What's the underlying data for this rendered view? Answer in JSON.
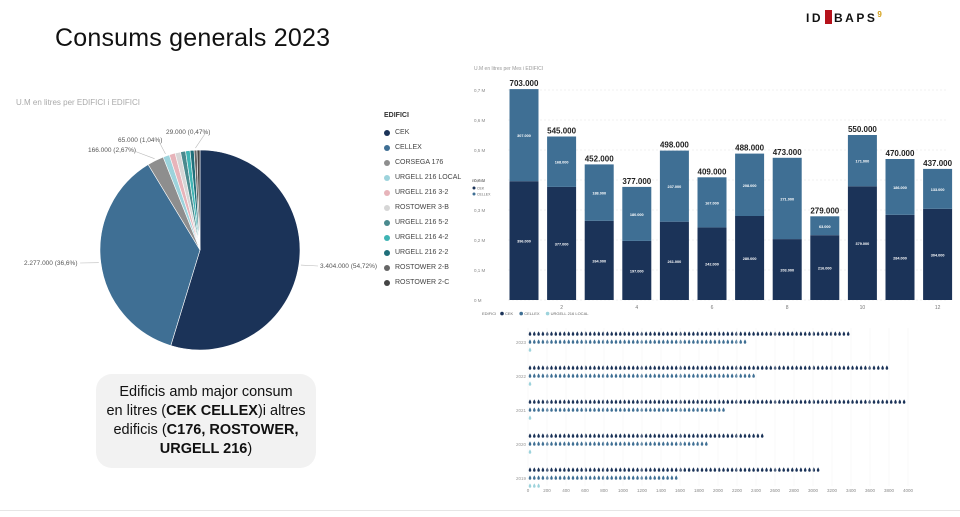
{
  "page": {
    "title": "Consums generals 2023",
    "logo_left": "ID",
    "logo_right": "BAPS",
    "logo_sup": "9"
  },
  "callout": {
    "line1": "Edificis amb major consum",
    "line2_pre": "en litres (",
    "line2_bold": "CEK CELLEX",
    "line2_post": ")i altres",
    "line3_pre": "edificis (",
    "line3_bold": "C176, ROSTOWER,",
    "line4_bold": "URGELL 216",
    "line4_post": ")"
  },
  "colors": {
    "cek": "#1b3358",
    "cellex": "#3f6f94",
    "corsega": "#8e8e8e",
    "urgell_local": "#9dd3dc",
    "urgell_3_2": "#e7b4ba",
    "rostower_3b": "#d6d6d6",
    "urgell_5_2": "#4a8a8e",
    "urgell_4_2": "#3fb4b4",
    "urgell_2_2": "#1f6f7a",
    "rostower_2b": "#666666",
    "rostower_2c": "#444444"
  },
  "chart_data": [
    {
      "type": "pie",
      "title": "U.M en litres per EDIFICI i EDIFICI",
      "legend_title": "EDIFICI",
      "legend_position": "right",
      "slices": [
        {
          "name": "CEK",
          "value": 3404000,
          "label": "3.404.000 (54,72%)",
          "color_key": "cek"
        },
        {
          "name": "CELLEX",
          "value": 2277000,
          "label": "2.277.000 (36,6%)",
          "color_key": "cellex"
        },
        {
          "name": "CORSEGA 176",
          "value": 166000,
          "label": "166.000 (2,67%)",
          "color_key": "corsega"
        },
        {
          "name": "URGELL 216 LOCAL",
          "value": 65000,
          "label": "65.000 (1,04%)",
          "color_key": "urgell_local"
        },
        {
          "name": "URGELL 216 3-2",
          "value": 60000,
          "label": "",
          "color_key": "urgell_3_2"
        },
        {
          "name": "ROSTOWER 3-B",
          "value": 55000,
          "label": "",
          "color_key": "rostower_3b"
        },
        {
          "name": "URGELL 216 5-2",
          "value": 50000,
          "label": "",
          "color_key": "urgell_5_2"
        },
        {
          "name": "URGELL 216 4-2",
          "value": 45000,
          "label": "",
          "color_key": "urgell_4_2"
        },
        {
          "name": "URGELL 216 2-2",
          "value": 40000,
          "label": "",
          "color_key": "urgell_2_2"
        },
        {
          "name": "ROSTOWER 2-B",
          "value": 29000,
          "label": "29.000 (0,47%)",
          "color_key": "rostower_2b"
        },
        {
          "name": "ROSTOWER 2-C",
          "value": 30000,
          "label": "",
          "color_key": "rostower_2c"
        }
      ]
    },
    {
      "type": "bar",
      "title": "U.M en litres per Mes i EDIFICI",
      "legend_title": "EDIFICI",
      "legend_entries": [
        "CEK",
        "CELLEX",
        "URGELL 216 LOCAL"
      ],
      "categories": [
        "1",
        "2",
        "3",
        "4",
        "5",
        "6",
        "7",
        "8",
        "9",
        "10",
        "11",
        "12"
      ],
      "x_tick_labels": [
        "2",
        "4",
        "6",
        "8",
        "10",
        "12"
      ],
      "ylim": [
        0,
        700000
      ],
      "y_ticks": [
        "0 M",
        "0,1 M",
        "0,2 M",
        "0,3 M",
        "0,4 M",
        "0,5 M",
        "0,6 M",
        "0,7 M"
      ],
      "totals": [
        "703.000",
        "545.000",
        "452.000",
        "377.000",
        "498.000",
        "409.000",
        "488.000",
        "473.000",
        "279.000",
        "550.000",
        "470.000",
        "437.000"
      ],
      "total_values": [
        703000,
        545000,
        452000,
        377000,
        498000,
        409000,
        488000,
        473000,
        279000,
        550000,
        470000,
        437000
      ],
      "series": [
        {
          "name": "CEK",
          "values": [
            396000,
            377000,
            264000,
            197000,
            261000,
            242000,
            280000,
            203000,
            216000,
            379000,
            284000,
            304000
          ],
          "labels": [
            "396.000",
            "377.000",
            "264.000",
            "197.000",
            "261.000",
            "242.000",
            "280.000",
            "203.000",
            "216.000",
            "379.000",
            "284.000",
            "304.000"
          ]
        },
        {
          "name": "CELLEX",
          "values": [
            307000,
            168000,
            188000,
            180000,
            237000,
            167000,
            208000,
            271000,
            63000,
            171000,
            186000,
            133000
          ],
          "labels": [
            "307.000",
            "168.000",
            "188.000",
            "180.000",
            "237.000",
            "167.000",
            "208.000",
            "271.000",
            "63.000",
            "171.000",
            "186.000",
            "133.000"
          ]
        }
      ]
    },
    {
      "type": "bar",
      "orientation": "horizontal",
      "title": "",
      "years": [
        "2023",
        "2022",
        "2021",
        "2020",
        "2019"
      ],
      "x_ticks": [
        "0",
        "200",
        "400",
        "600",
        "800",
        "1000",
        "1200",
        "1400",
        "1600",
        "1800",
        "2000",
        "2200",
        "2400",
        "2600",
        "2800",
        "3000",
        "3200",
        "3400",
        "3600",
        "3800",
        "4000"
      ],
      "xlim": [
        0,
        4000
      ],
      "series": [
        {
          "name": "CEK",
          "values": [
            3400,
            3800,
            4000,
            2500,
            3100
          ]
        },
        {
          "name": "CELLEX",
          "values": [
            2300,
            2400,
            2100,
            1900,
            1600
          ]
        },
        {
          "name": "URGELL 216 LOCAL",
          "values": [
            40,
            40,
            40,
            40,
            120
          ]
        }
      ]
    }
  ]
}
